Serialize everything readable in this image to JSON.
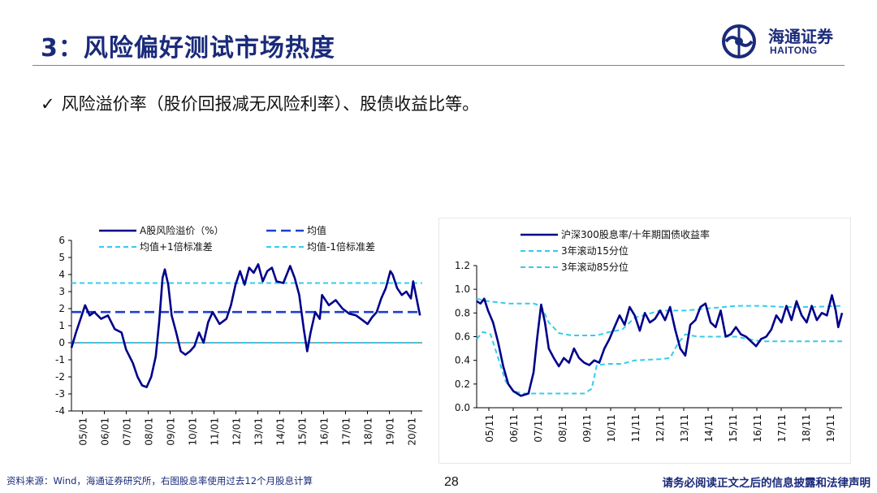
{
  "header": {
    "title": "3：风险偏好测试市场热度",
    "logo_cn": "海通证券",
    "logo_en": "HAITONG"
  },
  "bullet": {
    "check": "✓",
    "text": "风险溢价率（股价回报减无风险利率）、股债收益比等。"
  },
  "colors": {
    "navy": "#00008B",
    "brand": "#1a2a7a",
    "light_blue": "#33ccee",
    "mid_blue": "#1f3fcf"
  },
  "chart_data": [
    {
      "type": "line",
      "title": "",
      "ylim": [
        -4,
        6
      ],
      "yticks": [
        "6",
        "5",
        "4",
        "3",
        "2",
        "1",
        "0",
        "-1",
        "-2",
        "-3",
        "-4"
      ],
      "x_categories": [
        "05/01",
        "06/01",
        "07/01",
        "08/01",
        "09/01",
        "10/01",
        "11/01",
        "12/01",
        "13/01",
        "14/01",
        "15/01",
        "16/01",
        "17/01",
        "18/01",
        "19/01",
        "20/01"
      ],
      "x_start": 2005.0,
      "x_end": 2020.4,
      "legend": [
        "A股风险溢价（%）",
        "均值",
        "均值+1倍标准差",
        "均值-1倍标准差"
      ],
      "series": [
        {
          "name": "A股风险溢价（%）",
          "style": "solid",
          "points": [
            [
              2005.0,
              -0.3
            ],
            [
              2005.2,
              0.6
            ],
            [
              2005.4,
              1.4
            ],
            [
              2005.6,
              2.2
            ],
            [
              2005.8,
              1.6
            ],
            [
              2006.0,
              1.8
            ],
            [
              2006.3,
              1.4
            ],
            [
              2006.6,
              1.6
            ],
            [
              2006.9,
              0.8
            ],
            [
              2007.2,
              0.6
            ],
            [
              2007.4,
              -0.4
            ],
            [
              2007.7,
              -1.2
            ],
            [
              2007.9,
              -2.0
            ],
            [
              2008.1,
              -2.5
            ],
            [
              2008.3,
              -2.6
            ],
            [
              2008.5,
              -2.0
            ],
            [
              2008.7,
              -0.8
            ],
            [
              2008.85,
              1.2
            ],
            [
              2009.0,
              3.8
            ],
            [
              2009.1,
              4.3
            ],
            [
              2009.25,
              3.4
            ],
            [
              2009.4,
              1.6
            ],
            [
              2009.6,
              0.6
            ],
            [
              2009.8,
              -0.5
            ],
            [
              2010.0,
              -0.7
            ],
            [
              2010.2,
              -0.5
            ],
            [
              2010.4,
              -0.2
            ],
            [
              2010.6,
              0.6
            ],
            [
              2010.8,
              0.0
            ],
            [
              2011.0,
              1.2
            ],
            [
              2011.2,
              1.8
            ],
            [
              2011.5,
              1.1
            ],
            [
              2011.8,
              1.4
            ],
            [
              2012.0,
              2.2
            ],
            [
              2012.2,
              3.4
            ],
            [
              2012.4,
              4.2
            ],
            [
              2012.6,
              3.4
            ],
            [
              2012.8,
              4.4
            ],
            [
              2013.0,
              4.1
            ],
            [
              2013.2,
              4.6
            ],
            [
              2013.4,
              3.6
            ],
            [
              2013.6,
              4.2
            ],
            [
              2013.8,
              4.4
            ],
            [
              2014.0,
              3.6
            ],
            [
              2014.3,
              3.5
            ],
            [
              2014.6,
              4.5
            ],
            [
              2014.8,
              3.8
            ],
            [
              2015.0,
              2.8
            ],
            [
              2015.2,
              0.8
            ],
            [
              2015.35,
              -0.5
            ],
            [
              2015.5,
              0.6
            ],
            [
              2015.7,
              1.8
            ],
            [
              2015.9,
              1.4
            ],
            [
              2016.0,
              2.8
            ],
            [
              2016.3,
              2.2
            ],
            [
              2016.6,
              2.5
            ],
            [
              2016.9,
              2.0
            ],
            [
              2017.2,
              1.7
            ],
            [
              2017.5,
              1.6
            ],
            [
              2017.8,
              1.3
            ],
            [
              2018.0,
              1.1
            ],
            [
              2018.2,
              1.5
            ],
            [
              2018.4,
              1.8
            ],
            [
              2018.6,
              2.6
            ],
            [
              2018.8,
              3.2
            ],
            [
              2019.0,
              4.2
            ],
            [
              2019.1,
              4.0
            ],
            [
              2019.3,
              3.2
            ],
            [
              2019.5,
              2.8
            ],
            [
              2019.7,
              3.0
            ],
            [
              2019.9,
              2.6
            ],
            [
              2020.0,
              3.6
            ],
            [
              2020.15,
              2.6
            ],
            [
              2020.3,
              1.6
            ]
          ]
        },
        {
          "name": "均值",
          "style": "dash",
          "value": 1.8
        },
        {
          "name": "均值+1倍标准差",
          "style": "dash-light",
          "value": 3.5
        },
        {
          "name": "均值-1倍标准差",
          "style": "dash-light",
          "value": 0.0
        }
      ]
    },
    {
      "type": "line",
      "title": "",
      "ylim": [
        0.0,
        1.2
      ],
      "yticks": [
        "1.2",
        "1.0",
        "0.8",
        "0.6",
        "0.4",
        "0.2",
        "0.0"
      ],
      "x_categories": [
        "05/11",
        "06/11",
        "07/11",
        "08/11",
        "09/11",
        "10/11",
        "11/11",
        "12/11",
        "13/11",
        "14/11",
        "15/11",
        "16/11",
        "17/11",
        "18/11",
        "19/11"
      ],
      "x_start": 2005.75,
      "x_end": 2020.2,
      "legend": [
        "沪深300股息率/十年期国债收益率",
        "3年滚动15分位",
        "3年滚动85分位"
      ],
      "series": [
        {
          "name": "沪深300股息率/十年期国债收益率",
          "style": "solid",
          "points": [
            [
              2005.75,
              0.9
            ],
            [
              2005.9,
              0.88
            ],
            [
              2006.05,
              0.92
            ],
            [
              2006.2,
              0.82
            ],
            [
              2006.4,
              0.72
            ],
            [
              2006.6,
              0.55
            ],
            [
              2006.8,
              0.35
            ],
            [
              2007.0,
              0.2
            ],
            [
              2007.2,
              0.14
            ],
            [
              2007.5,
              0.1
            ],
            [
              2007.8,
              0.12
            ],
            [
              2008.0,
              0.3
            ],
            [
              2008.15,
              0.6
            ],
            [
              2008.3,
              0.87
            ],
            [
              2008.45,
              0.72
            ],
            [
              2008.6,
              0.5
            ],
            [
              2008.8,
              0.42
            ],
            [
              2009.0,
              0.35
            ],
            [
              2009.2,
              0.42
            ],
            [
              2009.4,
              0.38
            ],
            [
              2009.6,
              0.5
            ],
            [
              2009.8,
              0.42
            ],
            [
              2010.0,
              0.38
            ],
            [
              2010.2,
              0.36
            ],
            [
              2010.4,
              0.4
            ],
            [
              2010.6,
              0.38
            ],
            [
              2010.8,
              0.5
            ],
            [
              2011.0,
              0.58
            ],
            [
              2011.2,
              0.68
            ],
            [
              2011.4,
              0.78
            ],
            [
              2011.6,
              0.7
            ],
            [
              2011.8,
              0.85
            ],
            [
              2012.0,
              0.78
            ],
            [
              2012.2,
              0.65
            ],
            [
              2012.4,
              0.8
            ],
            [
              2012.6,
              0.72
            ],
            [
              2012.8,
              0.75
            ],
            [
              2013.0,
              0.82
            ],
            [
              2013.2,
              0.74
            ],
            [
              2013.4,
              0.85
            ],
            [
              2013.6,
              0.66
            ],
            [
              2013.8,
              0.5
            ],
            [
              2014.0,
              0.44
            ],
            [
              2014.2,
              0.7
            ],
            [
              2014.4,
              0.74
            ],
            [
              2014.6,
              0.85
            ],
            [
              2014.8,
              0.88
            ],
            [
              2015.0,
              0.72
            ],
            [
              2015.2,
              0.68
            ],
            [
              2015.4,
              0.82
            ],
            [
              2015.6,
              0.6
            ],
            [
              2015.8,
              0.62
            ],
            [
              2016.0,
              0.68
            ],
            [
              2016.2,
              0.62
            ],
            [
              2016.4,
              0.6
            ],
            [
              2016.6,
              0.56
            ],
            [
              2016.8,
              0.52
            ],
            [
              2017.0,
              0.58
            ],
            [
              2017.2,
              0.6
            ],
            [
              2017.4,
              0.66
            ],
            [
              2017.6,
              0.78
            ],
            [
              2017.8,
              0.72
            ],
            [
              2018.0,
              0.86
            ],
            [
              2018.2,
              0.74
            ],
            [
              2018.4,
              0.9
            ],
            [
              2018.6,
              0.78
            ],
            [
              2018.8,
              0.72
            ],
            [
              2019.0,
              0.86
            ],
            [
              2019.2,
              0.74
            ],
            [
              2019.4,
              0.8
            ],
            [
              2019.6,
              0.78
            ],
            [
              2019.8,
              0.95
            ],
            [
              2019.95,
              0.82
            ],
            [
              2020.05,
              0.68
            ],
            [
              2020.2,
              0.8
            ]
          ]
        },
        {
          "name": "3年滚动15分位",
          "style": "dash-light",
          "points": [
            [
              2005.75,
              0.58
            ],
            [
              2006.0,
              0.64
            ],
            [
              2006.3,
              0.62
            ],
            [
              2006.6,
              0.42
            ],
            [
              2006.9,
              0.22
            ],
            [
              2007.2,
              0.14
            ],
            [
              2007.6,
              0.12
            ],
            [
              2008.5,
              0.12
            ],
            [
              2009.5,
              0.12
            ],
            [
              2010.0,
              0.12
            ],
            [
              2010.3,
              0.16
            ],
            [
              2010.5,
              0.36
            ],
            [
              2011.0,
              0.37
            ],
            [
              2011.5,
              0.37
            ],
            [
              2012.0,
              0.4
            ],
            [
              2013.0,
              0.41
            ],
            [
              2013.4,
              0.42
            ],
            [
              2013.7,
              0.54
            ],
            [
              2014.0,
              0.62
            ],
            [
              2014.5,
              0.6
            ],
            [
              2015.0,
              0.6
            ],
            [
              2016.0,
              0.6
            ],
            [
              2016.5,
              0.58
            ],
            [
              2017.0,
              0.56
            ],
            [
              2018.0,
              0.56
            ],
            [
              2019.0,
              0.56
            ],
            [
              2020.2,
              0.56
            ]
          ]
        },
        {
          "name": "3年滚动85分位",
          "style": "dash-light",
          "points": [
            [
              2005.75,
              0.92
            ],
            [
              2006.2,
              0.9
            ],
            [
              2007.0,
              0.88
            ],
            [
              2008.0,
              0.88
            ],
            [
              2008.3,
              0.86
            ],
            [
              2008.6,
              0.72
            ],
            [
              2009.0,
              0.63
            ],
            [
              2009.5,
              0.61
            ],
            [
              2010.5,
              0.61
            ],
            [
              2011.0,
              0.64
            ],
            [
              2011.5,
              0.66
            ],
            [
              2012.0,
              0.76
            ],
            [
              2012.5,
              0.79
            ],
            [
              2013.0,
              0.82
            ],
            [
              2014.0,
              0.82
            ],
            [
              2015.0,
              0.84
            ],
            [
              2016.0,
              0.86
            ],
            [
              2017.0,
              0.86
            ],
            [
              2018.0,
              0.85
            ],
            [
              2019.0,
              0.85
            ],
            [
              2020.2,
              0.86
            ]
          ]
        }
      ]
    }
  ],
  "footer": {
    "source": "资料来源：Wind，海通证券研究所，右图股息率使用过去12个月股息计算",
    "page": "28",
    "legal": "请务必阅读正文之后的信息披露和法律声明"
  }
}
